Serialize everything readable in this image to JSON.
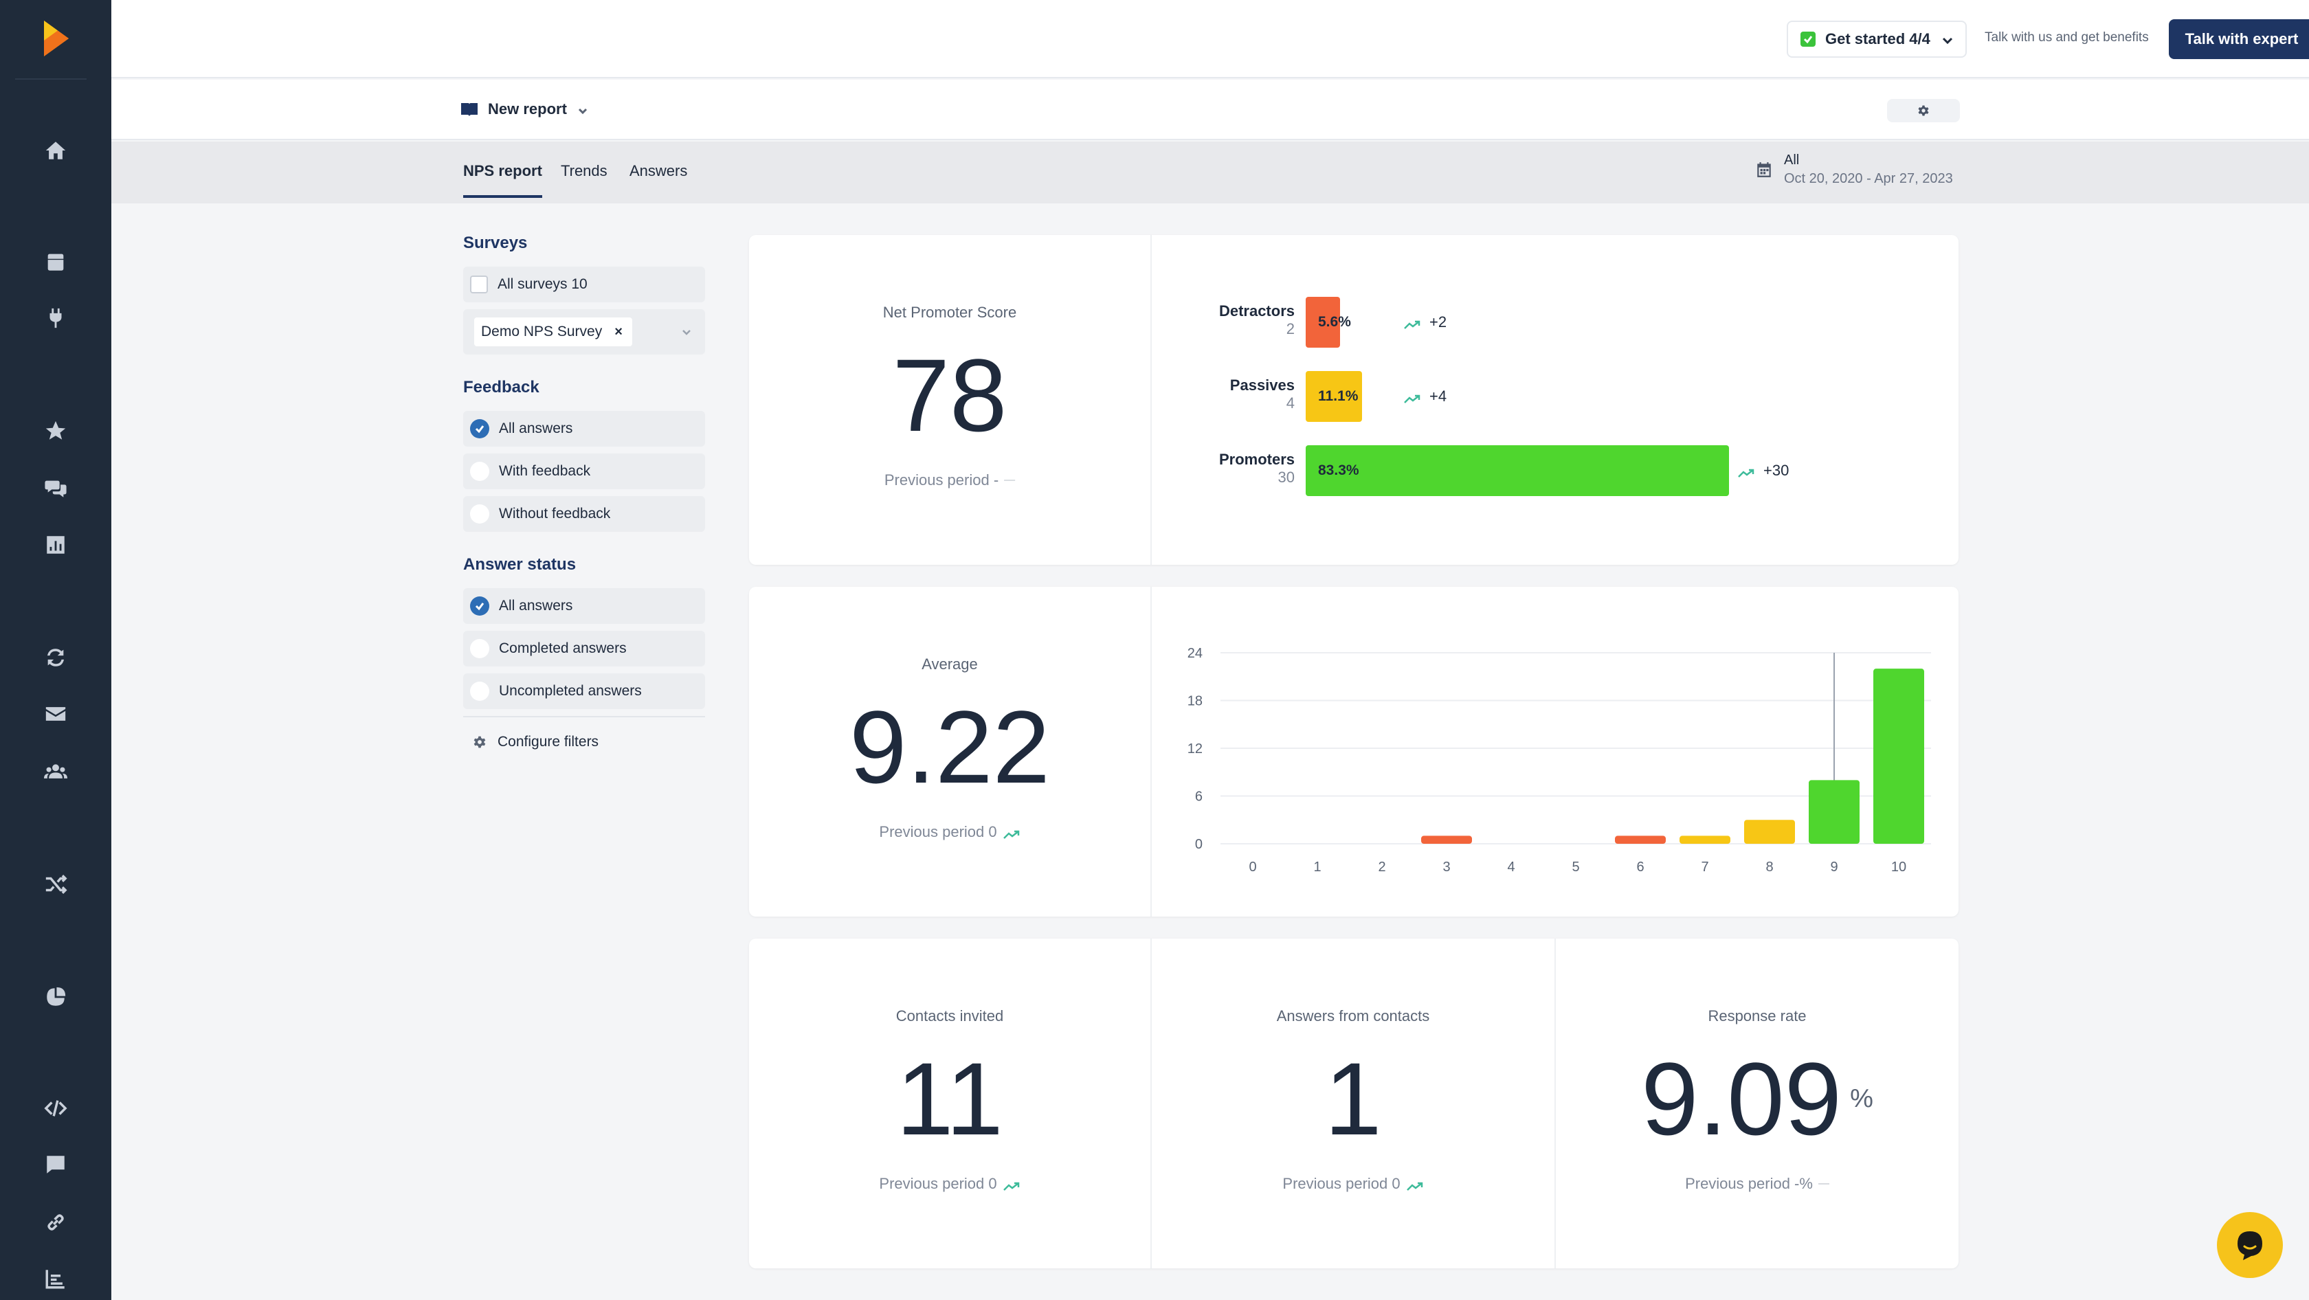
{
  "topbar": {
    "get_started_label": "Get started 4/4",
    "talk_hint": "Talk with us and get benefits",
    "talk_button": "Talk with expert"
  },
  "report": {
    "name": "New report"
  },
  "tabs": [
    {
      "label": "NPS report",
      "active": true
    },
    {
      "label": "Trends",
      "active": false
    },
    {
      "label": "Answers",
      "active": false
    }
  ],
  "date_range": {
    "title": "All",
    "range": "Oct 20, 2020 - Apr 27, 2023"
  },
  "filters": {
    "surveys": {
      "title": "Surveys",
      "all_label": "All surveys 10",
      "selected_chip": "Demo NPS Survey",
      "chip_remove": "×"
    },
    "feedback": {
      "title": "Feedback",
      "options": [
        "All answers",
        "With feedback",
        "Without feedback"
      ],
      "selected": "All answers"
    },
    "answer_status": {
      "title": "Answer status",
      "options": [
        "All answers",
        "Completed answers",
        "Uncompleted answers"
      ],
      "selected": "All answers"
    },
    "configure_label": "Configure filters"
  },
  "nps": {
    "label": "Net Promoter Score",
    "value": "78",
    "previous": "Previous period -",
    "previous_dash": "—",
    "categories": [
      {
        "name": "Detractors",
        "count": "2",
        "percent_label": "5.6%",
        "percent": 5.6,
        "delta": "+2",
        "color": "#f2643a"
      },
      {
        "name": "Passives",
        "count": "4",
        "percent_label": "11.1%",
        "percent": 11.1,
        "delta": "+4",
        "color": "#f7c615"
      },
      {
        "name": "Promoters",
        "count": "30",
        "percent_label": "83.3%",
        "percent": 83.3,
        "delta": "+30",
        "color": "#4fd62e"
      }
    ]
  },
  "average": {
    "label": "Average",
    "value": "9.22",
    "previous": "Previous period 0"
  },
  "chart_data": {
    "type": "bar",
    "categories": [
      "0",
      "1",
      "2",
      "3",
      "4",
      "5",
      "6",
      "7",
      "8",
      "9",
      "10"
    ],
    "values": [
      0,
      0,
      0,
      1,
      0,
      0,
      1,
      1,
      3,
      8,
      22
    ],
    "colors": [
      "#f2643a",
      "#f2643a",
      "#f2643a",
      "#f2643a",
      "#f2643a",
      "#f2643a",
      "#f2643a",
      "#f7c615",
      "#f7c615",
      "#4fd62e",
      "#4fd62e"
    ],
    "ylim": [
      0,
      24
    ],
    "yticks": [
      "0",
      "6",
      "12",
      "18",
      "24"
    ],
    "grid": true,
    "title": "",
    "xlabel": "",
    "ylabel": ""
  },
  "contacts": {
    "invited_label": "Contacts invited",
    "invited_value": "11",
    "invited_prev": "Previous period 0",
    "answers_label": "Answers from contacts",
    "answers_value": "1",
    "answers_prev": "Previous period 0",
    "rate_label": "Response rate",
    "rate_value": "9.09",
    "rate_unit": "%",
    "rate_prev": "Previous period -%",
    "rate_prev_dash": "—"
  }
}
